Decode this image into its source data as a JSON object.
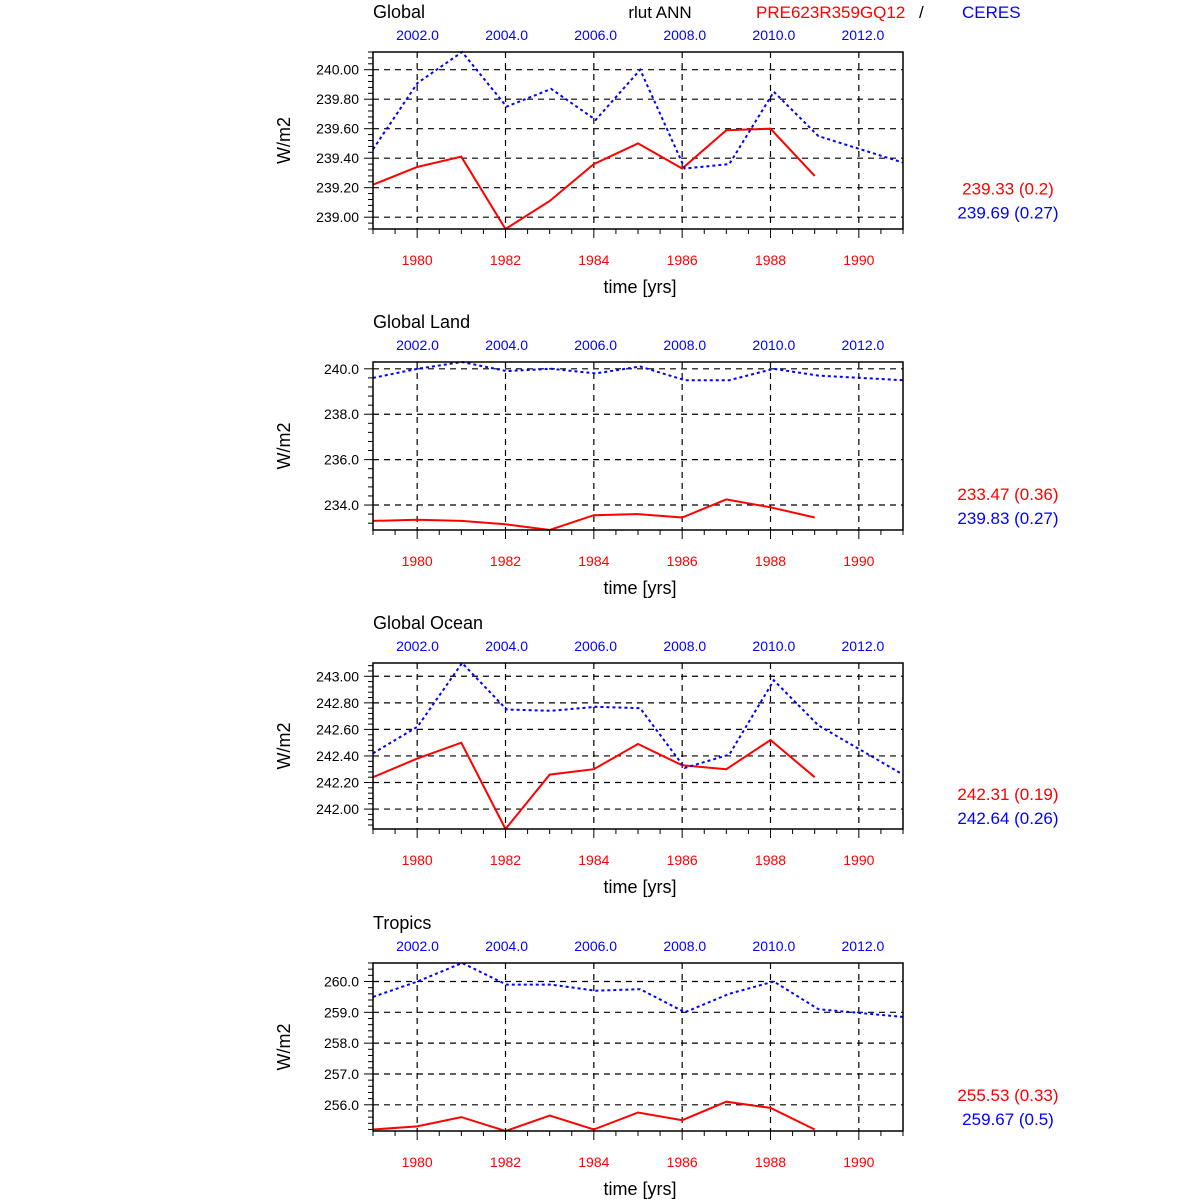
{
  "header": {
    "variable": "rlut ANN",
    "model_label": "PRE623R359GQ12",
    "separator": "/",
    "obs_label": "CERES"
  },
  "colors": {
    "model": "#ff0000",
    "obs": "#0000ff",
    "axis": "#000000",
    "grid": "#000000"
  },
  "chart_data": [
    {
      "type": "line",
      "title": "Global",
      "xlabel": "time [yrs]",
      "ylabel": "W/m2",
      "xlim": [
        1979,
        1991
      ],
      "xticks": [
        "1980",
        "1982",
        "1984",
        "1986",
        "1988",
        "1990"
      ],
      "top_xlim": [
        2001,
        2012.9
      ],
      "top_xticks": [
        "2002.0",
        "2004.0",
        "2006.0",
        "2008.0",
        "2010.0",
        "2012.0"
      ],
      "ylim": [
        238.92,
        240.12
      ],
      "yticks": [
        "239.00",
        "239.20",
        "239.40",
        "239.60",
        "239.80",
        "240.00"
      ],
      "grid": true,
      "series": [
        {
          "name": "PRE623R359GQ12",
          "axis": "bottom",
          "style": "solid",
          "x": [
            1979,
            1980,
            1981,
            1982,
            1983,
            1984,
            1985,
            1986,
            1987,
            1988,
            1989
          ],
          "y": [
            239.22,
            239.34,
            239.41,
            238.92,
            239.11,
            239.36,
            239.5,
            239.33,
            239.59,
            239.6,
            239.28
          ],
          "summary": "239.33 (0.2)"
        },
        {
          "name": "CERES",
          "axis": "top",
          "style": "dotted",
          "x": [
            2001,
            2002,
            2003,
            2004,
            2005,
            2006,
            2007,
            2008,
            2009,
            2010,
            2011,
            2012.9
          ],
          "y": [
            239.46,
            239.91,
            240.12,
            239.75,
            239.87,
            239.66,
            240.0,
            239.33,
            239.36,
            239.85,
            239.55,
            239.37
          ],
          "summary": "239.69 (0.27)"
        }
      ]
    },
    {
      "type": "line",
      "title": "Global Land",
      "xlabel": "time [yrs]",
      "ylabel": "W/m2",
      "xlim": [
        1979,
        1991
      ],
      "xticks": [
        "1980",
        "1982",
        "1984",
        "1986",
        "1988",
        "1990"
      ],
      "top_xlim": [
        2001,
        2012.9
      ],
      "top_xticks": [
        "2002.0",
        "2004.0",
        "2006.0",
        "2008.0",
        "2010.0",
        "2012.0"
      ],
      "ylim": [
        232.9,
        240.3
      ],
      "yticks": [
        "234.0",
        "236.0",
        "238.0",
        "240.0"
      ],
      "grid": true,
      "series": [
        {
          "name": "PRE623R359GQ12",
          "axis": "bottom",
          "style": "solid",
          "x": [
            1979,
            1980,
            1981,
            1982,
            1983,
            1984,
            1985,
            1986,
            1987,
            1988,
            1989
          ],
          "y": [
            233.3,
            233.35,
            233.3,
            233.15,
            232.9,
            233.55,
            233.6,
            233.45,
            234.25,
            233.9,
            233.45
          ],
          "summary": "233.47 (0.36)"
        },
        {
          "name": "CERES",
          "axis": "top",
          "style": "dotted",
          "x": [
            2001,
            2002,
            2003,
            2004,
            2005,
            2006,
            2007,
            2008,
            2009,
            2010,
            2011,
            2012.9
          ],
          "y": [
            239.6,
            240.0,
            240.3,
            239.9,
            240.0,
            239.8,
            240.1,
            239.5,
            239.5,
            240.0,
            239.7,
            239.5
          ],
          "summary": "239.83 (0.27)"
        }
      ]
    },
    {
      "type": "line",
      "title": "Global Ocean",
      "xlabel": "time [yrs]",
      "ylabel": "W/m2",
      "xlim": [
        1979,
        1991
      ],
      "xticks": [
        "1980",
        "1982",
        "1984",
        "1986",
        "1988",
        "1990"
      ],
      "top_xlim": [
        2001,
        2012.9
      ],
      "top_xticks": [
        "2002.0",
        "2004.0",
        "2006.0",
        "2008.0",
        "2010.0",
        "2012.0"
      ],
      "ylim": [
        241.85,
        243.1
      ],
      "yticks": [
        "242.00",
        "242.20",
        "242.40",
        "242.60",
        "242.80",
        "243.00"
      ],
      "grid": true,
      "series": [
        {
          "name": "PRE623R359GQ12",
          "axis": "bottom",
          "style": "solid",
          "x": [
            1979,
            1980,
            1981,
            1982,
            1983,
            1984,
            1985,
            1986,
            1987,
            1988,
            1989
          ],
          "y": [
            242.24,
            242.38,
            242.5,
            241.85,
            242.26,
            242.3,
            242.49,
            242.33,
            242.3,
            242.52,
            242.24
          ],
          "summary": "242.31 (0.19)"
        },
        {
          "name": "CERES",
          "axis": "top",
          "style": "dotted",
          "x": [
            2001,
            2002,
            2003,
            2004,
            2005,
            2006,
            2007,
            2008,
            2009,
            2010,
            2011,
            2012.9
          ],
          "y": [
            242.42,
            242.62,
            243.1,
            242.75,
            242.74,
            242.77,
            242.76,
            242.31,
            242.41,
            242.97,
            242.63,
            242.26
          ],
          "summary": "242.64 (0.26)"
        }
      ]
    },
    {
      "type": "line",
      "title": "Tropics",
      "xlabel": "time [yrs]",
      "ylabel": "W/m2",
      "xlim": [
        1979,
        1991
      ],
      "xticks": [
        "1980",
        "1982",
        "1984",
        "1986",
        "1988",
        "1990"
      ],
      "top_xlim": [
        2001,
        2012.9
      ],
      "top_xticks": [
        "2002.0",
        "2004.0",
        "2006.0",
        "2008.0",
        "2010.0",
        "2012.0"
      ],
      "ylim": [
        255.15,
        260.6
      ],
      "yticks": [
        "256.0",
        "257.0",
        "258.0",
        "259.0",
        "260.0"
      ],
      "grid": true,
      "series": [
        {
          "name": "PRE623R359GQ12",
          "axis": "bottom",
          "style": "solid",
          "x": [
            1979,
            1980,
            1981,
            1982,
            1983,
            1984,
            1985,
            1986,
            1987,
            1988,
            1989
          ],
          "y": [
            255.2,
            255.3,
            255.6,
            255.15,
            255.65,
            255.2,
            255.75,
            255.5,
            256.1,
            255.9,
            255.2
          ],
          "summary": "255.53 (0.33)"
        },
        {
          "name": "CERES",
          "axis": "top",
          "style": "dotted",
          "x": [
            2001,
            2002,
            2003,
            2004,
            2005,
            2006,
            2007,
            2008,
            2009,
            2010,
            2011,
            2012.9
          ],
          "y": [
            259.5,
            260.0,
            260.6,
            259.9,
            259.9,
            259.7,
            259.75,
            259.0,
            259.6,
            260.0,
            259.1,
            258.85
          ],
          "summary": "259.67 (0.5)"
        }
      ]
    }
  ]
}
